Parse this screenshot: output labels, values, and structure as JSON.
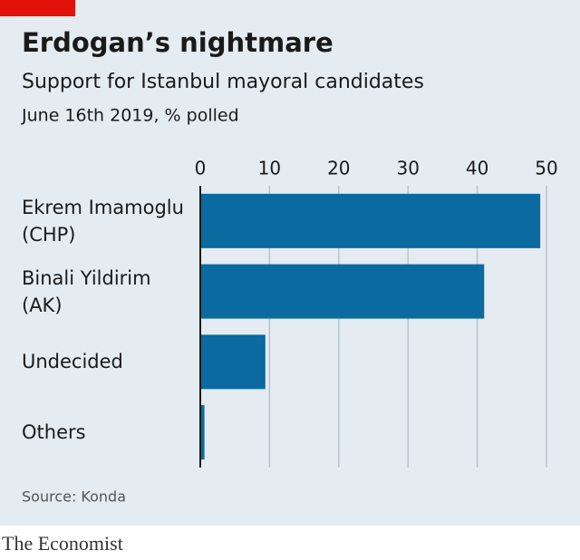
{
  "chart_data": {
    "type": "bar",
    "orientation": "horizontal",
    "title": "Erdogan’s nightmare",
    "subtitle": "Support for Istanbul mayoral candidates",
    "note": "June 16th 2019, % polled",
    "categories": [
      "Ekrem Imamoglu\n(CHP)",
      "Binali Yildirim\n(AK)",
      "Undecided",
      "Others"
    ],
    "values": [
      49.1,
      41.0,
      9.4,
      0.6
    ],
    "color": "#0b6a9f",
    "xlim": [
      0,
      50
    ],
    "xticks": [
      0,
      10,
      20,
      30,
      40,
      50
    ],
    "grid": true,
    "source": "Source: Konda"
  },
  "footer": {
    "brand": "The Economist"
  }
}
